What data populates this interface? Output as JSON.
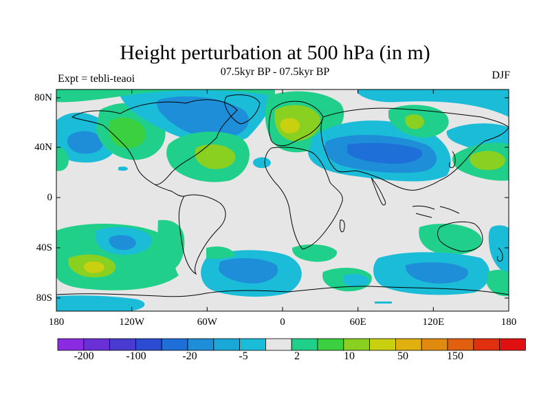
{
  "map": {
    "title": "Height perturbation at 500 hPa (in m)",
    "subtitle": "07.5kyr BP - 07.5kyr BP",
    "left_label": "Expt = tebli-teaoi",
    "right_label": "DJF",
    "lat_labels": [
      "80N",
      "40N",
      "0",
      "40S",
      "80S"
    ],
    "lon_labels": [
      "180",
      "120W",
      "60W",
      "0",
      "60E",
      "120E",
      "180"
    ],
    "colorbar": {
      "colors": [
        "#8a2be2",
        "#6a30d8",
        "#4a3bd0",
        "#2b4bd0",
        "#1f6fd8",
        "#1e8ed8",
        "#1aa8d8",
        "#1bbcd8",
        "#e6e6e6",
        "#20d08a",
        "#3ad040",
        "#8ad020",
        "#c8d010",
        "#e0b010",
        "#e08a10",
        "#e06010",
        "#e03010",
        "#e01010"
      ],
      "labels": [
        "-200",
        "-100",
        "-20",
        "-5",
        "2",
        "10",
        "50",
        "150"
      ]
    }
  }
}
